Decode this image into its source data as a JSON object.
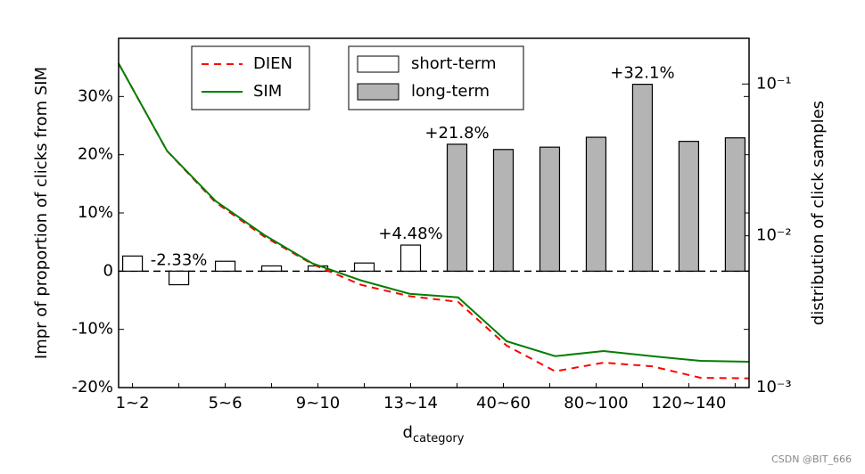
{
  "chart_data": {
    "type": "bar",
    "ylabel": "Impr of proportion of clicks from SIM",
    "y2label": "distribution of click samples",
    "xlabel": "d",
    "xlabel_sub": "category",
    "categories": [
      "1~2",
      null,
      "5~6",
      null,
      "9~10",
      null,
      "13~14",
      null,
      "40~60",
      null,
      "80~100",
      null,
      "120~140",
      null
    ],
    "series": [
      {
        "name": "short-term",
        "color": "#ffffff",
        "values": [
          2.6,
          -2.33,
          1.7,
          0.9,
          0.9,
          1.4,
          4.48,
          null,
          null,
          null,
          null,
          null,
          null,
          null
        ],
        "value_labels": [
          null,
          "-2.33%",
          null,
          null,
          null,
          null,
          "+4.48%",
          null,
          null,
          null,
          null,
          null,
          null,
          null
        ]
      },
      {
        "name": "long-term",
        "color": "#b4b4b4",
        "values": [
          null,
          null,
          null,
          null,
          null,
          null,
          null,
          21.8,
          20.9,
          21.3,
          23.0,
          32.1,
          22.3,
          22.9
        ],
        "value_labels": [
          null,
          null,
          null,
          null,
          null,
          null,
          null,
          "+21.8%",
          null,
          null,
          null,
          "+32.1%",
          null,
          null
        ]
      }
    ],
    "lines": [
      {
        "name": "DIEN",
        "color": "#ff0000",
        "dashed": true,
        "axis": "y2",
        "values": [
          0.1365,
          0.0362,
          0.0166,
          0.0099,
          0.0065,
          0.00475,
          0.004,
          0.00367,
          0.00189,
          0.00128,
          0.00146,
          0.00138,
          0.00116,
          0.00115
        ]
      },
      {
        "name": "SIM",
        "color": "#007f00",
        "dashed": false,
        "axis": "y2",
        "values": [
          0.1365,
          0.0362,
          0.01696,
          0.01014,
          0.00657,
          0.00508,
          0.00415,
          0.00393,
          0.00202,
          0.00161,
          0.00174,
          0.00161,
          0.0015,
          0.00148
        ]
      }
    ],
    "ylim": [
      -20,
      40
    ],
    "yticks": [
      {
        "value": -20,
        "label": "-20%"
      },
      {
        "value": -10,
        "label": "-10%"
      },
      0,
      {
        "value": 10,
        "label": "10%"
      },
      {
        "value": 20,
        "label": "20%"
      },
      {
        "value": 30,
        "label": "30%"
      }
    ],
    "y2lim": [
      0.001,
      0.2
    ],
    "y2log": true,
    "y2ticks": [
      {
        "value": 0.001,
        "label": "10⁻³"
      },
      {
        "value": 0.01,
        "label": "10⁻²"
      },
      {
        "value": 0.1,
        "label": "10⁻¹"
      }
    ],
    "watermark": "CSDN @BIT_666"
  }
}
